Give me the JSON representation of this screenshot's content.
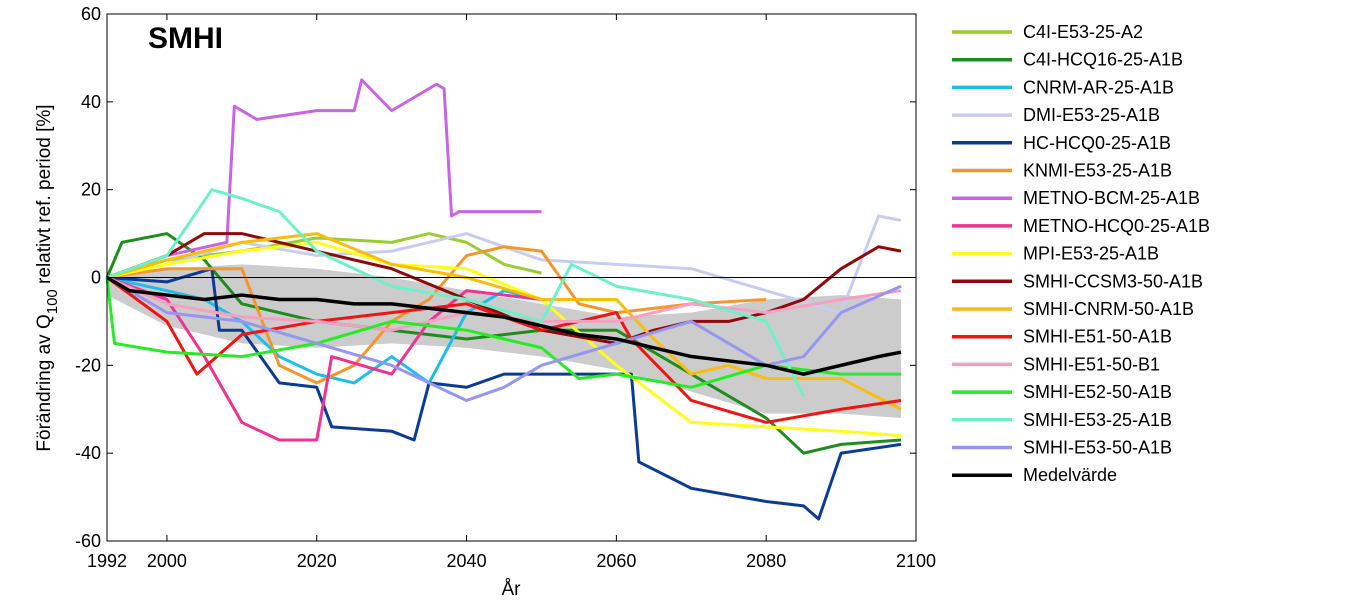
{
  "logo_text": "SMHI",
  "chart_data": {
    "type": "line",
    "title": "",
    "xlabel": "År",
    "ylabel_main": "Förändring av Q",
    "ylabel_sub": "100",
    "ylabel_rest": " relativt ref. period [%]",
    "xlim": [
      1992,
      2100
    ],
    "ylim": [
      -60,
      60
    ],
    "xticks": [
      1992,
      2000,
      2020,
      2040,
      2060,
      2080,
      2100
    ],
    "yticks": [
      -60,
      -40,
      -20,
      0,
      20,
      40,
      60
    ],
    "legend_position": "outside-right",
    "band": {
      "x": [
        1992,
        2000,
        2010,
        2020,
        2030,
        2040,
        2050,
        2060,
        2070,
        2080,
        2090,
        2098
      ],
      "upper": [
        0,
        2,
        3,
        2,
        0,
        -3,
        -6,
        -9,
        -8,
        -5,
        -4,
        -5
      ],
      "lower": [
        -4,
        -11,
        -15,
        -16,
        -15,
        -16,
        -18,
        -21,
        -26,
        -31,
        -31,
        -32
      ],
      "color": "#cccccc"
    },
    "series": [
      {
        "name": "C4I-E53-25-A2",
        "color": "#9acd32",
        "x": [
          1992,
          2000,
          2010,
          2020,
          2030,
          2035,
          2040,
          2045,
          2050
        ],
        "y": [
          0,
          4,
          6,
          9,
          8,
          10,
          8,
          3,
          1
        ]
      },
      {
        "name": "C4I-HCQ16-25-A1B",
        "color": "#1f8c1f",
        "x": [
          1992,
          1994,
          2000,
          2005,
          2010,
          2020,
          2030,
          2040,
          2050,
          2060,
          2070,
          2080,
          2085,
          2090,
          2098
        ],
        "y": [
          0,
          8,
          10,
          4,
          -6,
          -10,
          -12,
          -14,
          -12,
          -12,
          -22,
          -32,
          -40,
          -38,
          -37
        ]
      },
      {
        "name": "CNRM-AR-25-A1B",
        "color": "#1ebeeb",
        "x": [
          1992,
          2000,
          2005,
          2010,
          2015,
          2020,
          2025,
          2030,
          2035,
          2040,
          2045,
          2050
        ],
        "y": [
          0,
          -3,
          -5,
          -10,
          -18,
          -22,
          -24,
          -18,
          -24,
          -8,
          -3,
          -5
        ]
      },
      {
        "name": "DMI-E53-25-A1B",
        "color": "#c8cdf0",
        "x": [
          1992,
          2000,
          2010,
          2020,
          2030,
          2040,
          2050,
          2060,
          2070,
          2080,
          2090,
          2095,
          2098
        ],
        "y": [
          0,
          3,
          8,
          5,
          6,
          10,
          4,
          3,
          2,
          -3,
          -8,
          14,
          13
        ]
      },
      {
        "name": "HC-HCQ0-25-A1B",
        "color": "#0a3c96",
        "x": [
          1992,
          2000,
          2006,
          2007,
          2010,
          2015,
          2020,
          2022,
          2030,
          2033,
          2035,
          2040,
          2045,
          2050,
          2055,
          2062,
          2063,
          2070,
          2080,
          2085,
          2087,
          2090,
          2098
        ],
        "y": [
          0,
          -1,
          2,
          -12,
          -12,
          -24,
          -25,
          -34,
          -35,
          -37,
          -24,
          -25,
          -22,
          -22,
          -22,
          -22,
          -42,
          -48,
          -51,
          -52,
          -55,
          -40,
          -38
        ]
      },
      {
        "name": "KNMI-E53-25-A1B",
        "color": "#f5962d",
        "x": [
          1992,
          2000,
          2010,
          2015,
          2020,
          2025,
          2030,
          2035,
          2040,
          2045,
          2050,
          2055,
          2060,
          2070,
          2080
        ],
        "y": [
          0,
          2,
          2,
          -20,
          -24,
          -20,
          -10,
          -5,
          5,
          7,
          6,
          -6,
          -8,
          -6,
          -5
        ]
      },
      {
        "name": "METNO-BCM-25-A1B",
        "color": "#c864e6",
        "x": [
          1992,
          2000,
          2008,
          2009,
          2012,
          2020,
          2025,
          2026,
          2030,
          2036,
          2037,
          2038,
          2039,
          2045,
          2050
        ],
        "y": [
          0,
          5,
          8,
          39,
          36,
          38,
          38,
          45,
          38,
          44,
          43,
          14,
          15,
          15,
          15
        ]
      },
      {
        "name": "METNO-HCQ0-25-A1B",
        "color": "#f03291",
        "x": [
          1992,
          2000,
          2005,
          2010,
          2015,
          2020,
          2022,
          2030,
          2035,
          2040,
          2050
        ],
        "y": [
          0,
          -5,
          -18,
          -33,
          -37,
          -37,
          -18,
          -22,
          -10,
          -3,
          -5
        ]
      },
      {
        "name": "MPI-E53-25-A1B",
        "color": "#ffff1e",
        "x": [
          1992,
          2000,
          2010,
          2020,
          2030,
          2040,
          2050,
          2060,
          2070,
          2080,
          2090,
          2098
        ],
        "y": [
          0,
          3,
          6,
          8,
          3,
          2,
          -5,
          -20,
          -33,
          -34,
          -35,
          -36
        ]
      },
      {
        "name": "SMHI-CCSM3-50-A1B",
        "color": "#8c0a0a",
        "x": [
          1992,
          2000,
          2005,
          2010,
          2020,
          2030,
          2040,
          2050,
          2060,
          2065,
          2070,
          2075,
          2080,
          2085,
          2090,
          2095,
          2098
        ],
        "y": [
          0,
          5,
          10,
          10,
          6,
          2,
          -5,
          -12,
          -15,
          -12,
          -10,
          -10,
          -8,
          -5,
          2,
          7,
          6
        ]
      },
      {
        "name": "SMHI-CNRM-50-A1B",
        "color": "#fabe0a",
        "x": [
          1992,
          2000,
          2010,
          2020,
          2030,
          2040,
          2050,
          2060,
          2065,
          2070,
          2075,
          2080,
          2090,
          2098
        ],
        "y": [
          0,
          4,
          8,
          10,
          3,
          0,
          -5,
          -5,
          -14,
          -22,
          -20,
          -23,
          -23,
          -30
        ]
      },
      {
        "name": "SMHI-E51-50-A1B",
        "color": "#f01414",
        "x": [
          1992,
          2000,
          2004,
          2010,
          2020,
          2030,
          2040,
          2050,
          2060,
          2062,
          2070,
          2080,
          2090,
          2098
        ],
        "y": [
          0,
          -10,
          -22,
          -13,
          -10,
          -8,
          -6,
          -12,
          -8,
          -14,
          -28,
          -33,
          -30,
          -28
        ]
      },
      {
        "name": "SMHI-E51-50-B1",
        "color": "#f5a0c3",
        "x": [
          1992,
          2000,
          2010,
          2020,
          2030,
          2040,
          2050,
          2060,
          2070,
          2080,
          2090,
          2098
        ],
        "y": [
          0,
          -6,
          -9,
          -10,
          -12,
          -8,
          -10,
          -10,
          -6,
          -8,
          -5,
          -3
        ]
      },
      {
        "name": "SMHI-E52-50-A1B",
        "color": "#28eb28",
        "x": [
          1992,
          1993,
          2000,
          2010,
          2020,
          2030,
          2040,
          2050,
          2055,
          2060,
          2070,
          2080,
          2090,
          2098
        ],
        "y": [
          0,
          -15,
          -17,
          -18,
          -15,
          -10,
          -12,
          -16,
          -23,
          -22,
          -25,
          -20,
          -22,
          -22
        ]
      },
      {
        "name": "SMHI-E53-25-A1B",
        "color": "#6ef0c8",
        "x": [
          1992,
          2000,
          2006,
          2010,
          2015,
          2020,
          2030,
          2040,
          2050,
          2054,
          2060,
          2070,
          2080,
          2085
        ],
        "y": [
          0,
          5,
          20,
          18,
          15,
          6,
          -2,
          -5,
          -10,
          3,
          -2,
          -5,
          -10,
          -27
        ]
      },
      {
        "name": "SMHI-E53-50-A1B",
        "color": "#9696f0",
        "x": [
          1992,
          2000,
          2010,
          2020,
          2030,
          2040,
          2045,
          2050,
          2060,
          2070,
          2080,
          2085,
          2090,
          2098
        ],
        "y": [
          0,
          -8,
          -10,
          -15,
          -20,
          -28,
          -25,
          -20,
          -15,
          -10,
          -20,
          -18,
          -8,
          -2
        ]
      },
      {
        "name": "Medelvärde",
        "color": "#000000",
        "x": [
          1992,
          1995,
          2000,
          2005,
          2010,
          2015,
          2020,
          2025,
          2030,
          2035,
          2040,
          2045,
          2050,
          2055,
          2060,
          2065,
          2070,
          2075,
          2080,
          2085,
          2090,
          2095,
          2098
        ],
        "y": [
          0,
          -3,
          -4,
          -5,
          -4,
          -5,
          -5,
          -6,
          -6,
          -7,
          -8,
          -9,
          -11,
          -13,
          -14,
          -16,
          -18,
          -19,
          -20,
          -22,
          -20,
          -18,
          -17
        ]
      }
    ]
  }
}
